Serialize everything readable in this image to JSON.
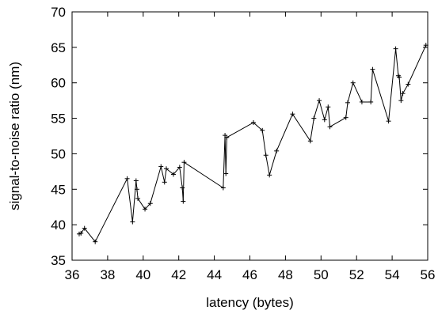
{
  "chart_data": {
    "type": "line",
    "xlabel": "latency (bytes)",
    "ylabel": "signal-to-noise ratio (nm)",
    "xlim": [
      36,
      56
    ],
    "ylim": [
      35,
      70
    ],
    "xticks": [
      36,
      38,
      40,
      42,
      44,
      46,
      48,
      50,
      52,
      54,
      56
    ],
    "yticks": [
      35,
      40,
      45,
      50,
      55,
      60,
      65,
      70
    ],
    "grid": false,
    "marker": "plus",
    "series": [
      {
        "color": "#000000",
        "x": [
          36.4,
          36.5,
          36.7,
          37.3,
          39.1,
          39.4,
          39.6,
          39.65,
          39.7,
          40.1,
          40.4,
          41.0,
          41.2,
          41.3,
          41.7,
          42.05,
          42.2,
          42.25,
          42.3,
          44.5,
          44.6,
          44.65,
          44.7,
          46.2,
          46.7,
          46.9,
          47.1,
          47.5,
          48.4,
          49.4,
          49.6,
          49.9,
          50.2,
          50.4,
          50.5,
          51.4,
          51.5,
          51.8,
          52.3,
          52.8,
          52.9,
          53.8,
          54.2,
          54.35,
          54.4,
          54.5,
          54.6,
          54.9,
          55.9
        ],
        "y": [
          38.7,
          38.8,
          39.5,
          37.6,
          46.5,
          40.4,
          46.2,
          45.0,
          43.7,
          42.2,
          43.0,
          48.2,
          46.0,
          47.9,
          47.1,
          48.1,
          45.2,
          43.3,
          48.8,
          45.2,
          52.6,
          47.2,
          52.3,
          54.4,
          53.3,
          49.8,
          47.0,
          50.4,
          55.6,
          51.8,
          55.0,
          57.5,
          54.8,
          56.6,
          53.8,
          55.1,
          57.2,
          60.0,
          57.3,
          57.3,
          61.9,
          54.6,
          64.8,
          61.0,
          60.8,
          57.5,
          58.5,
          59.8,
          65.3
        ]
      }
    ]
  }
}
